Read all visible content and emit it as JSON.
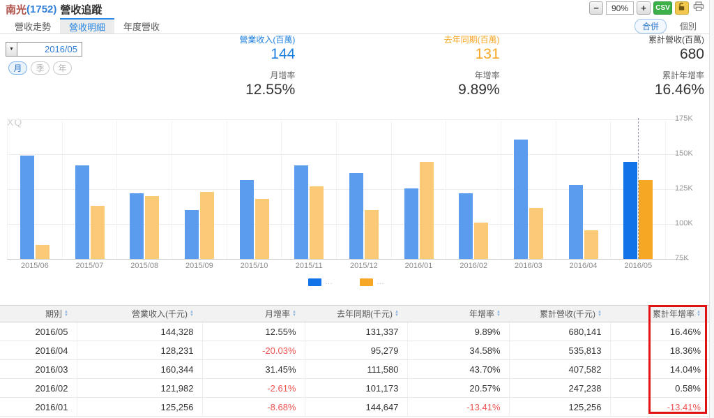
{
  "header": {
    "stock_name": "南光",
    "stock_code": "(1752)",
    "title_suffix": "營收追蹤"
  },
  "controls": {
    "zoom_out": "−",
    "zoom_level": "90%",
    "zoom_in": "+",
    "csv_label": "CSV"
  },
  "tabs": [
    {
      "label": "營收走勢",
      "active": false
    },
    {
      "label": "營收明細",
      "active": true
    },
    {
      "label": "年度營收",
      "active": false
    }
  ],
  "mode_buttons": [
    {
      "label": "合併",
      "active": true
    },
    {
      "label": "個別",
      "active": false
    }
  ],
  "date_picker": {
    "value": "2016/05"
  },
  "period_buttons": [
    {
      "label": "月",
      "active": true
    },
    {
      "label": "季",
      "active": false
    },
    {
      "label": "年",
      "active": false
    }
  ],
  "stats": [
    {
      "label": "營業收入(百萬)",
      "value": "144",
      "sub_label": "月增率",
      "sub_value": "12.55%",
      "color": "#1e7fe0"
    },
    {
      "label": "去年同期(百萬)",
      "value": "131",
      "sub_label": "年增率",
      "sub_value": "9.89%",
      "color": "#f5a623"
    },
    {
      "label": "累計營收(百萬)",
      "value": "680",
      "sub_label": "累計年增率",
      "sub_value": "16.46%",
      "color": "#444444"
    }
  ],
  "icons": {
    "caret_down": "▼",
    "sort_up": "▲",
    "sort_down": "▼"
  },
  "chart_data": {
    "type": "bar",
    "watermark": "XQ",
    "categories": [
      "2015/06",
      "2015/07",
      "2015/08",
      "2015/09",
      "2015/10",
      "2015/11",
      "2015/12",
      "2016/01",
      "2016/02",
      "2016/03",
      "2016/04",
      "2016/05"
    ],
    "series": [
      {
        "name": "營業收入(千元)",
        "color": "#5b9cee",
        "highlight_color": "#1273e8",
        "values": [
          149000,
          142000,
          122000,
          110000,
          131500,
          142000,
          136500,
          125256,
          121982,
          160344,
          128231,
          144328
        ]
      },
      {
        "name": "去年同期(千元)",
        "color": "#fbca77",
        "highlight_color": "#f6a723",
        "values": [
          85000,
          113000,
          120000,
          123000,
          118000,
          127000,
          110000,
          144647,
          101173,
          111580,
          95279,
          131337
        ]
      }
    ],
    "legend": [
      {
        "label": "…"
      },
      {
        "label": "…"
      }
    ],
    "legend_position": "bottom",
    "highlight_index": 11,
    "ylim": [
      75000,
      175000
    ],
    "yticks": [
      "175K",
      "150K",
      "125K",
      "100K",
      "75K"
    ],
    "grid": true
  },
  "table": {
    "columns": [
      "期別",
      "營業收入(千元)",
      "月增率",
      "去年同期(千元)",
      "年增率",
      "累計營收(千元)",
      "累計年增率"
    ],
    "rows": [
      [
        "2016/05",
        "144,328",
        "12.55%",
        "131,337",
        "9.89%",
        "680,141",
        "16.46%"
      ],
      [
        "2016/04",
        "128,231",
        "-20.03%",
        "95,279",
        "34.58%",
        "535,813",
        "18.36%"
      ],
      [
        "2016/03",
        "160,344",
        "31.45%",
        "111,580",
        "43.70%",
        "407,582",
        "14.04%"
      ],
      [
        "2016/02",
        "121,982",
        "-2.61%",
        "101,173",
        "20.57%",
        "247,238",
        "0.58%"
      ],
      [
        "2016/01",
        "125,256",
        "-8.68%",
        "144,647",
        "-13.41%",
        "125,256",
        "-13.41%"
      ]
    ],
    "highlight_column": 6
  }
}
